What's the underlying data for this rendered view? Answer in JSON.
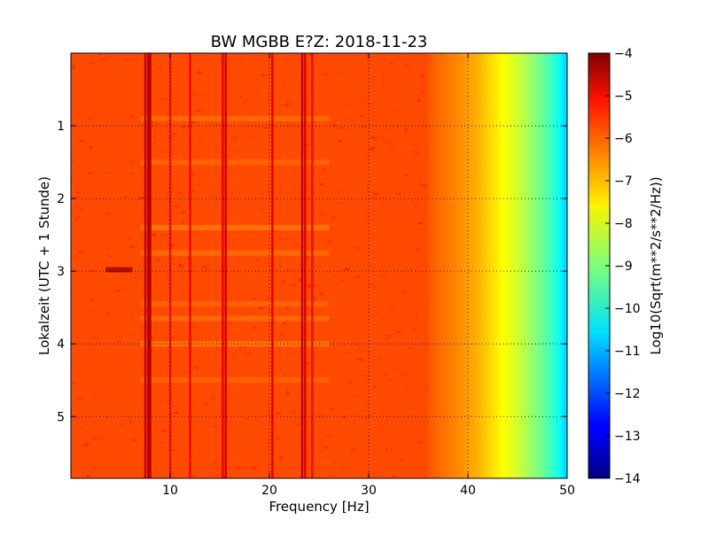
{
  "chart_data": {
    "type": "heatmap",
    "title": "BW MGBB E?Z: 2018-11-23",
    "xlabel": "Frequency [Hz]",
    "ylabel": "Lokalzeit (UTC + 1 Stunde)",
    "xlim": [
      0,
      50
    ],
    "ylim": [
      5.85,
      0
    ],
    "x_ticks": [
      10,
      20,
      30,
      40,
      50
    ],
    "x_tick_labels": [
      "10",
      "20",
      "30",
      "40",
      "50"
    ],
    "y_ticks": [
      1,
      2,
      3,
      4,
      5
    ],
    "y_tick_labels": [
      "1",
      "2",
      "3",
      "4",
      "5"
    ],
    "grid": true,
    "colorbar": {
      "label": "Log10(Sqrt(m**2/s**2/Hz))",
      "range": [
        -14,
        -4
      ],
      "ticks": [
        -4,
        -5,
        -6,
        -7,
        -8,
        -9,
        -10,
        -11,
        -12,
        -13,
        -14
      ],
      "tick_labels": [
        "−4",
        "−5",
        "−6",
        "−7",
        "−8",
        "−9",
        "−10",
        "−11",
        "−12",
        "−13",
        "−14"
      ],
      "colormap": "jet"
    },
    "background_level": -5.8,
    "spectral_lines": [
      {
        "freq": 7.5,
        "level": -4.6
      },
      {
        "freq": 7.8,
        "level": -4.4
      },
      {
        "freq": 8.0,
        "level": -4.7
      },
      {
        "freq": 10.0,
        "level": -5.4
      },
      {
        "freq": 12.0,
        "level": -5.2
      },
      {
        "freq": 15.3,
        "level": -5.0
      },
      {
        "freq": 15.6,
        "level": -4.8
      },
      {
        "freq": 20.3,
        "level": -5.0
      },
      {
        "freq": 23.3,
        "level": -4.6
      },
      {
        "freq": 23.6,
        "level": -4.9
      },
      {
        "freq": 24.3,
        "level": -5.3
      }
    ],
    "rolloff": [
      {
        "freq": 36,
        "level": -6.1
      },
      {
        "freq": 39,
        "level": -6.6
      },
      {
        "freq": 41,
        "level": -7.0
      },
      {
        "freq": 43,
        "level": -7.6
      },
      {
        "freq": 45,
        "level": -8.2
      },
      {
        "freq": 47,
        "level": -9.0
      },
      {
        "freq": 48.5,
        "level": -9.7
      },
      {
        "freq": 49.5,
        "level": -10.4
      },
      {
        "freq": 50,
        "level": -10.8
      }
    ],
    "time_events": [
      {
        "time": 0.9,
        "f_start": 7,
        "f_end": 26,
        "level": -6.4
      },
      {
        "time": 1.5,
        "f_start": 7,
        "f_end": 26,
        "level": -6.3
      },
      {
        "time": 2.4,
        "f_start": 7,
        "f_end": 26,
        "level": -6.5
      },
      {
        "time": 2.75,
        "f_start": 7,
        "f_end": 26,
        "level": -6.4
      },
      {
        "time": 3.45,
        "f_start": 7,
        "f_end": 26,
        "level": -6.3
      },
      {
        "time": 3.65,
        "f_start": 7,
        "f_end": 26,
        "level": -6.4
      },
      {
        "time": 4.0,
        "f_start": 7,
        "f_end": 26,
        "level": -6.5
      },
      {
        "time": 4.5,
        "f_start": 7,
        "f_end": 26,
        "level": -6.3
      },
      {
        "time": 2.98,
        "f_start": 3.5,
        "f_end": 6.2,
        "level": -4.2
      }
    ]
  }
}
